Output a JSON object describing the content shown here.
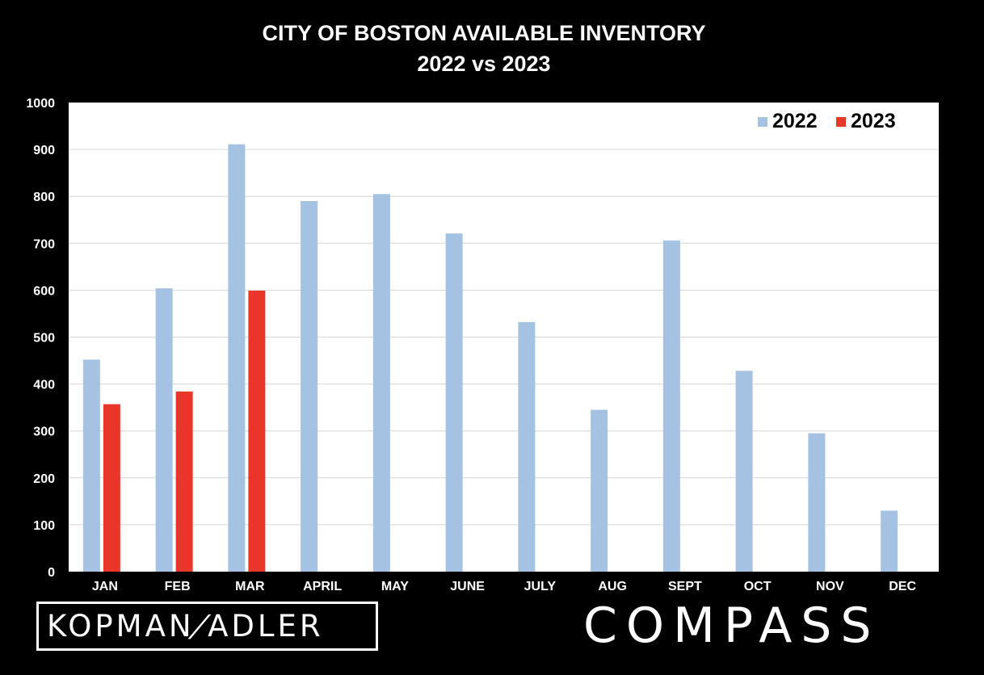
{
  "title": {
    "line1": "CITY OF BOSTON AVAILABLE INVENTORY",
    "line2": "2022 vs 2023"
  },
  "logos": {
    "left": {
      "text_a": "KOPMAN",
      "slash": "/",
      "text_b": "ADLER"
    },
    "right": {
      "text": "COMPASS"
    }
  },
  "chart_data": {
    "type": "bar",
    "title": "CITY OF BOSTON AVAILABLE INVENTORY 2022 vs 2023",
    "categories": [
      "JAN",
      "FEB",
      "MAR",
      "APRIL",
      "MAY",
      "JUNE",
      "JULY",
      "AUG",
      "SEPT",
      "OCT",
      "NOV",
      "DEC"
    ],
    "series": [
      {
        "name": "2022",
        "color": "#a6c2e3",
        "values": [
          452,
          604,
          911,
          790,
          805,
          721,
          532,
          345,
          706,
          428,
          295,
          130
        ]
      },
      {
        "name": "2023",
        "color": "#e8372a",
        "values": [
          357,
          384,
          599,
          null,
          null,
          null,
          null,
          null,
          null,
          null,
          null,
          null
        ]
      }
    ],
    "ylim": [
      0,
      1000
    ],
    "yticks": [
      "0",
      "100",
      "200",
      "300",
      "400",
      "500",
      "600",
      "700",
      "800",
      "900",
      "1000"
    ],
    "grid": true,
    "legend": "top-right"
  }
}
